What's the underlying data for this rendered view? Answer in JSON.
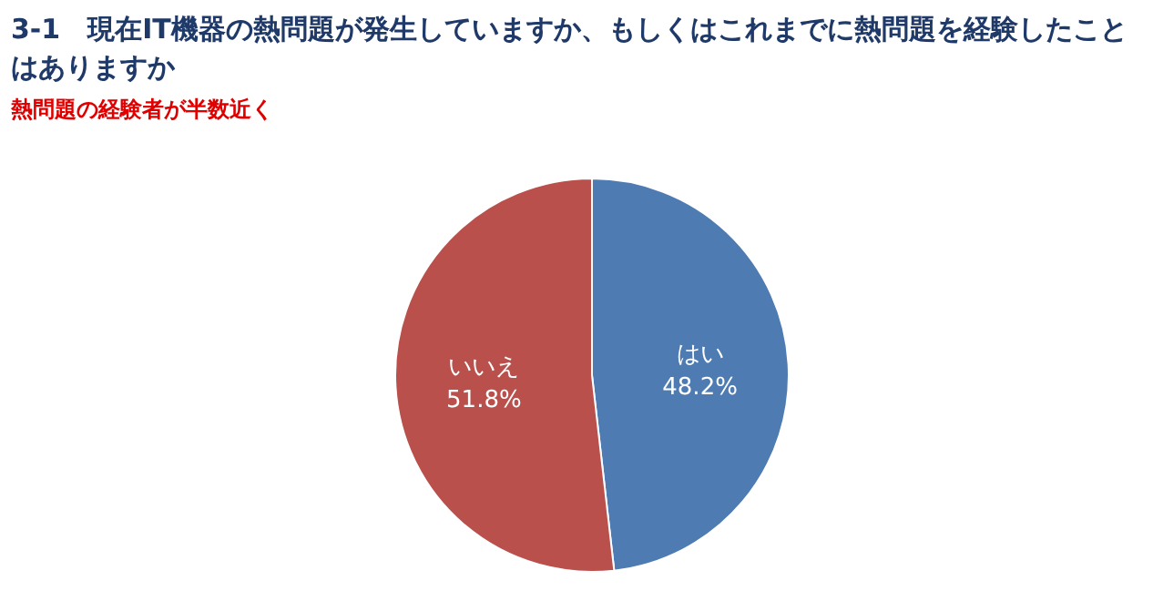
{
  "chart_data": {
    "type": "pie",
    "title": "3-1　現在IT機器の熱問題が発生していますか、もしくはこれまでに熱問題を経験したことはありますか",
    "subtitle": "熱問題の経験者が半数近く",
    "categories": [
      "はい",
      "いいえ"
    ],
    "values": [
      48.2,
      51.8
    ],
    "value_labels": [
      "48.2%",
      "51.8%"
    ],
    "colors": [
      "#4e7bb2",
      "#b9504c"
    ]
  }
}
